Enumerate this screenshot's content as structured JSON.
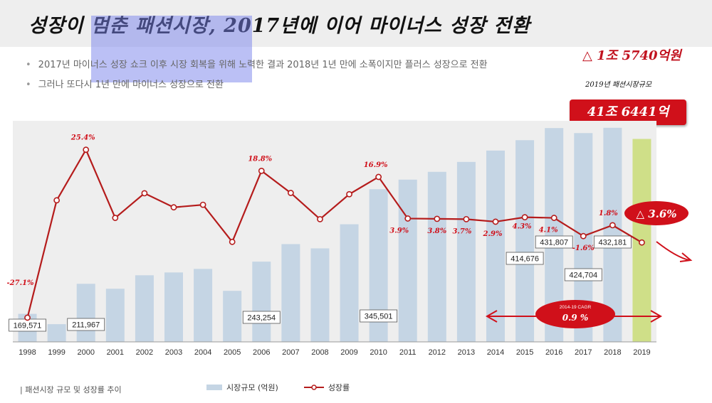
{
  "title": "성장이 멈춘 패션시장, 2017년에 이어 마이너스 성장 전환",
  "bullets": [
    "2017년 마이너스 성장 쇼크 이후 시장 회복을 위해 노력한 결과 2018년 1년 만에 소폭이지만 플러스 성장으로 전환",
    "그러나 또다시 1년 만에 마이너스 성장으로 전환"
  ],
  "annotations": {
    "change": "△ 1조 5740억원",
    "size_label": "2019년 패션시장규모",
    "total": "41조 6441억",
    "decline_badge": "△ 3.6%",
    "cagr_label": "2014-19 CAGR",
    "cagr_value": "0.9 %"
  },
  "caption": "| 패션시장 규모 및 성장률 추이",
  "legend": {
    "bar": "시장규모 (억원)",
    "line": "성장률"
  },
  "colors": {
    "bar": "#c5d5e4",
    "bar_2019": "#cfdf88",
    "line": "#b51c1c",
    "accent": "#d0101a",
    "plot_bg": "#eeeeee",
    "highlight": "#8a93ea"
  },
  "chart_data": {
    "type": "bar+line",
    "categories": [
      "1998",
      "1999",
      "2000",
      "2001",
      "2002",
      "2003",
      "2004",
      "2005",
      "2006",
      "2007",
      "2008",
      "2009",
      "2010",
      "2011",
      "2012",
      "2013",
      "2014",
      "2015",
      "2016",
      "2017",
      "2018",
      "2019"
    ],
    "series": [
      {
        "name": "시장규모 (억원)",
        "type": "bar",
        "values": [
          169571,
          155000,
          211967,
          205000,
          224000,
          228000,
          233000,
          202000,
          243254,
          268000,
          262000,
          296000,
          345501,
          359000,
          370000,
          384000,
          400000,
          414676,
          431807,
          424704,
          432181,
          416441
        ]
      },
      {
        "name": "성장률",
        "type": "line",
        "unit": "%",
        "values": [
          -27.1,
          9.6,
          25.4,
          4.1,
          11.8,
          7.4,
          8.2,
          -3.4,
          18.8,
          11.9,
          3.7,
          11.5,
          16.9,
          3.9,
          3.8,
          3.7,
          2.9,
          4.3,
          4.1,
          -1.6,
          1.8,
          -3.6
        ]
      }
    ],
    "bar_value_labels": {
      "1998": "169,571",
      "2000": "211,967",
      "2006": "243,254",
      "2010": "345,501",
      "2015": "414,676",
      "2016": "431,807",
      "2017": "424,704",
      "2018": "432,181"
    },
    "line_value_labels": {
      "1998": "-27.1%",
      "2000": "25.4%",
      "2006": "18.8%",
      "2010": "16.9%",
      "2011": "3.9%",
      "2012": "3.8%",
      "2013": "3.7%",
      "2014": "2.9%",
      "2015": "4.3%",
      "2016": "4.1%",
      "2017": "-1.6%",
      "2018": "1.8%"
    },
    "bar_axis_range": [
      130000,
      440000
    ],
    "line_axis_range": [
      -30,
      30
    ]
  }
}
